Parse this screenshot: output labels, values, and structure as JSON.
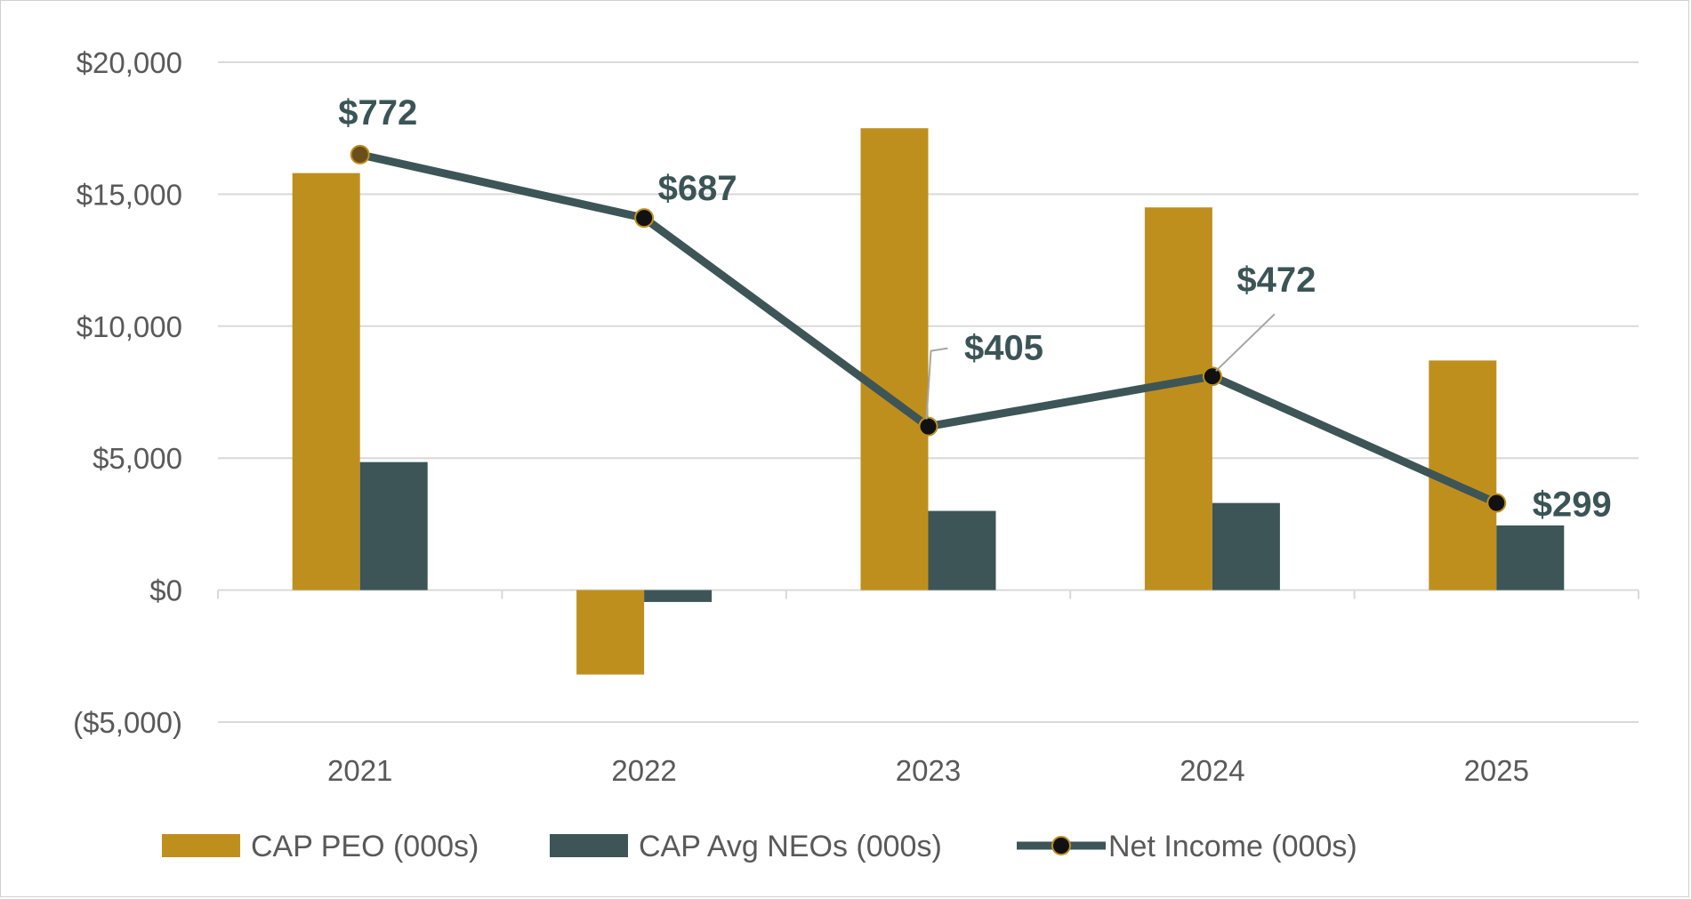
{
  "chart_data": {
    "type": "bar",
    "title": "",
    "xlabel": "",
    "ylabel": "",
    "categories": [
      "2021",
      "2022",
      "2023",
      "2024",
      "2025"
    ],
    "ylim": [
      -5000,
      20000
    ],
    "yticks": [
      20000,
      15000,
      10000,
      5000,
      0,
      -5000
    ],
    "ytick_labels": [
      "$20,000",
      "$15,000",
      "$10,000",
      "$5,000",
      "$0",
      "($5,000)"
    ],
    "grid": true,
    "legend_position": "bottom",
    "series": [
      {
        "name": "CAP PEO (000s)",
        "kind": "bar",
        "color": "#bf8f1e",
        "values": [
          15800,
          -3200,
          17500,
          14500,
          8700
        ]
      },
      {
        "name": "CAP Avg NEOs (000s)",
        "kind": "bar",
        "color": "#3d5556",
        "values": [
          4850,
          -450,
          3000,
          3300,
          2450
        ]
      },
      {
        "name": "Net Income (000s)",
        "kind": "line",
        "color": "#3d5556",
        "plot_values": [
          16500,
          14100,
          6200,
          8100,
          3300
        ],
        "value_labels": [
          "$772",
          "$687",
          "$405",
          "$472",
          "$299"
        ],
        "marker_colors": [
          "#6b4f1a",
          "#111111",
          "#111111",
          "#111111",
          "#111111"
        ]
      }
    ],
    "negative_tick_color": "#e00000"
  }
}
